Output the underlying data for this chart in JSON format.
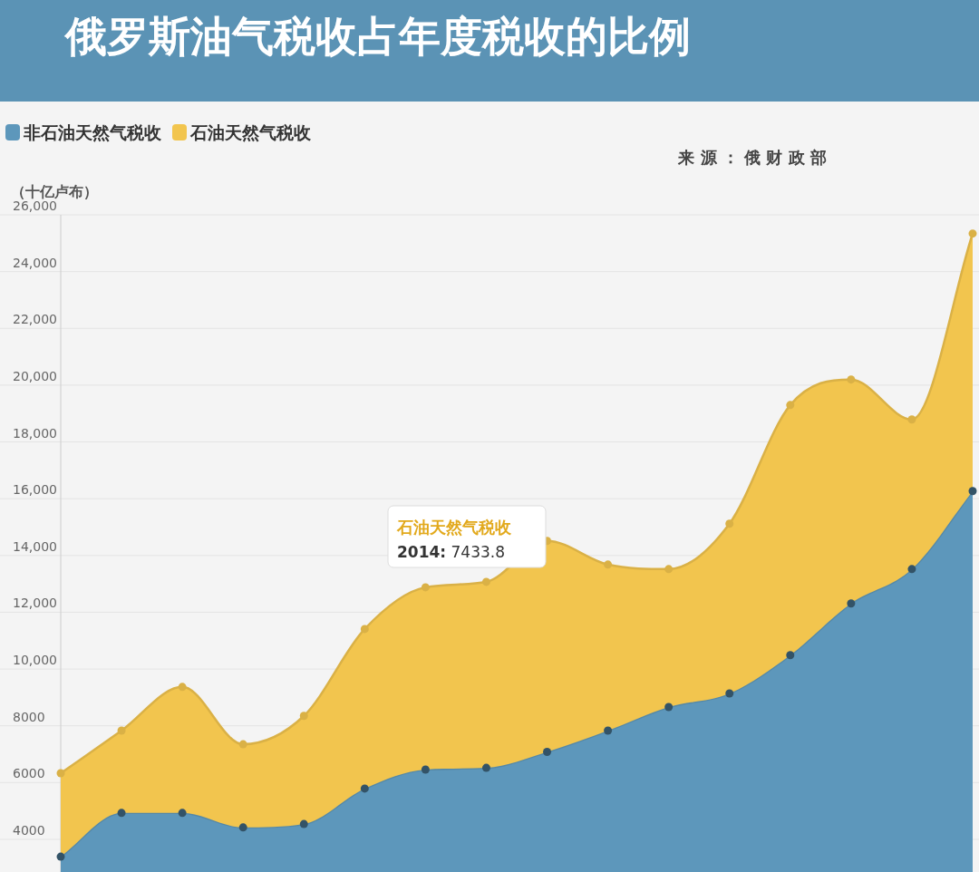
{
  "chart_data": {
    "type": "area",
    "stacked": true,
    "title": "俄罗斯油气税收占年度税收的比例",
    "ylabel": "（十亿卢布）",
    "categories": [
      null,
      null,
      null,
      null,
      null,
      null,
      null,
      null,
      null,
      null,
      null,
      null,
      null,
      null,
      null,
      null
    ],
    "series": [
      {
        "name": "非石油天然气税收",
        "color": "#5d97bb",
        "values": [
          3390,
          4930,
          4930,
          4420,
          4540,
          5790,
          6460,
          6520,
          7080,
          7830,
          8660,
          9140,
          10490,
          12310,
          13520,
          16270
        ]
      },
      {
        "name": "石油天然气税收",
        "color": "#f2c54e",
        "values": [
          2940,
          2900,
          4440,
          2930,
          3810,
          5620,
          6420,
          6550,
          7433.8,
          5850,
          4860,
          5980,
          8810,
          7890,
          5270,
          9070
        ]
      }
    ],
    "ylim": [
      2850,
      26000
    ],
    "yticks": [
      4000,
      6000,
      8000,
      {
        "value": 10000,
        "label": "10,000"
      },
      {
        "value": 12000,
        "label": "12,000"
      },
      {
        "value": 14000,
        "label": "14,000"
      },
      {
        "value": 16000,
        "label": "16,000"
      },
      {
        "value": 18000,
        "label": "18,000"
      },
      {
        "value": 20000,
        "label": "20,000"
      },
      {
        "value": 22000,
        "label": "22,000"
      },
      {
        "value": 24000,
        "label": "24,000"
      },
      {
        "value": 26000,
        "label": "26,000"
      }
    ],
    "grid": "y",
    "legend": "top left",
    "marker": "circle",
    "annotations": [
      "石油天然气税收\n2014: 7433.8",
      "来 源 ： 俄 财 政 部"
    ]
  }
}
